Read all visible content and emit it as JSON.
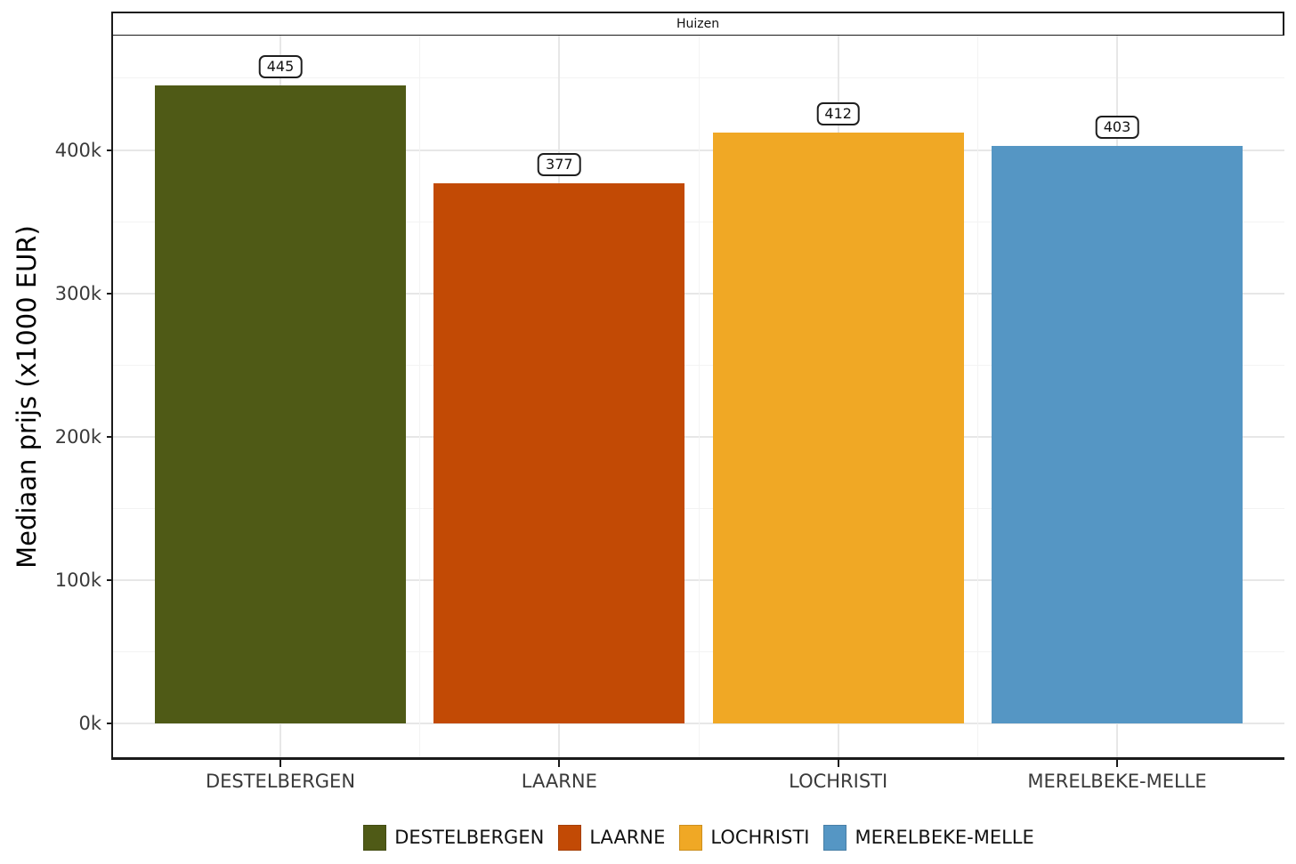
{
  "facet": {
    "title": "Huizen"
  },
  "y_axis": {
    "title": "Mediaan prijs (x1000 EUR)"
  },
  "chart_data": {
    "type": "bar",
    "title": "Huizen",
    "categories": [
      "DESTELBERGEN",
      "LAARNE",
      "LOCHRISTI",
      "MERELBEKE-MELLE"
    ],
    "values": [
      445,
      377,
      412,
      403
    ],
    "bar_labels": [
      "445",
      "377",
      "412",
      "403"
    ],
    "colors": [
      "#4f5a16",
      "#c24a05",
      "#f0a825",
      "#5596c4"
    ],
    "xlabel": "",
    "ylabel": "Mediaan prijs (x1000 EUR)",
    "ylim": [
      0,
      480
    ],
    "yticks": [
      {
        "v": 0,
        "label": "0k"
      },
      {
        "v": 100,
        "label": "100k"
      },
      {
        "v": 200,
        "label": "200k"
      },
      {
        "v": 300,
        "label": "300k"
      },
      {
        "v": 400,
        "label": "400k"
      }
    ],
    "yticks_minor": [
      50,
      150,
      250,
      350,
      450
    ],
    "grid": "major+minor",
    "legend": {
      "position": "bottom",
      "entries": [
        {
          "label": "DESTELBERGEN",
          "color": "#4f5a16"
        },
        {
          "label": "LAARNE",
          "color": "#c24a05"
        },
        {
          "label": "LOCHRISTI",
          "color": "#f0a825"
        },
        {
          "label": "MERELBEKE-MELLE",
          "color": "#5596c4"
        }
      ]
    }
  }
}
